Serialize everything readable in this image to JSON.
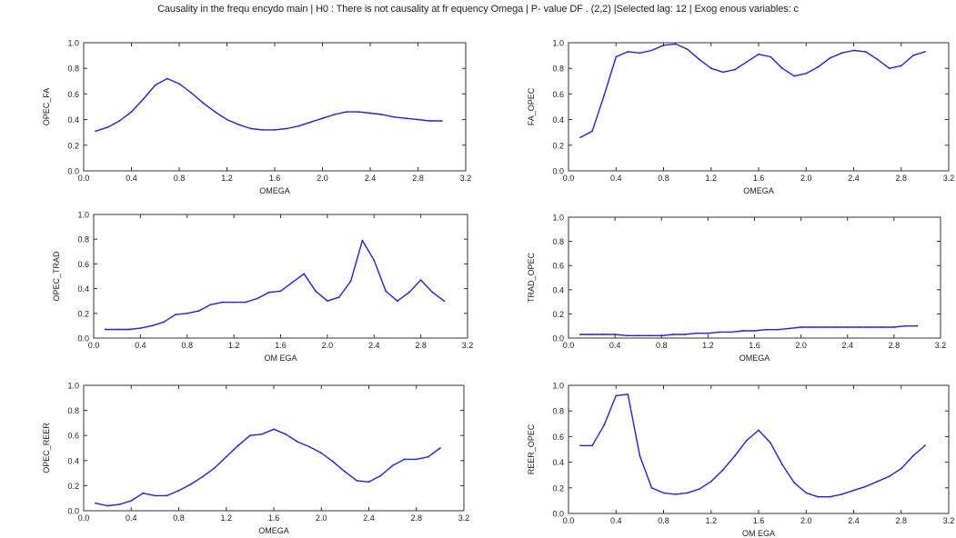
{
  "title": "Causality in the frequ encydo main | H0 : There is not causality at fr equency Omega | P- value DF . (2,2) |Selected lag: 12 | Exog enous variables: c",
  "line_color": "#1f1fff",
  "chart_data": [
    {
      "type": "line",
      "title": "",
      "xlabel": "OMEGA",
      "ylabel": "OPEC_FA",
      "xlim": [
        0.0,
        3.2
      ],
      "ylim": [
        0.0,
        1.0
      ],
      "xticks": [
        "0.0",
        "0.4",
        "0.8",
        "1.2",
        "1.6",
        "2.0",
        "2.4",
        "2.8",
        "3.2"
      ],
      "yticks": [
        "0.0",
        "0.2",
        "0.4",
        "0.6",
        "0.8",
        "1.0"
      ],
      "grid": false,
      "series": [
        {
          "x": [
            0.1,
            0.2,
            0.3,
            0.4,
            0.5,
            0.6,
            0.7,
            0.8,
            0.9,
            1.0,
            1.1,
            1.2,
            1.3,
            1.4,
            1.5,
            1.6,
            1.7,
            1.8,
            1.9,
            2.0,
            2.1,
            2.2,
            2.3,
            2.4,
            2.5,
            2.6,
            2.7,
            2.8,
            2.9,
            3.0
          ],
          "y": [
            0.31,
            0.34,
            0.39,
            0.46,
            0.56,
            0.67,
            0.72,
            0.68,
            0.61,
            0.53,
            0.46,
            0.4,
            0.36,
            0.33,
            0.32,
            0.32,
            0.33,
            0.35,
            0.38,
            0.41,
            0.44,
            0.46,
            0.46,
            0.45,
            0.44,
            0.42,
            0.41,
            0.4,
            0.39,
            0.39
          ]
        }
      ]
    },
    {
      "type": "line",
      "title": "",
      "xlabel": "OMEGA",
      "ylabel": "FA_OPEC",
      "xlim": [
        0.0,
        3.2
      ],
      "ylim": [
        0.0,
        1.0
      ],
      "xticks": [
        "0.0",
        "0.4",
        "0.8",
        "1.2",
        "1.6",
        "2.0",
        "2.4",
        "2.8",
        "3.2"
      ],
      "yticks": [
        "0.0",
        "0.2",
        "0.4",
        "0.6",
        "0.8",
        "1.0"
      ],
      "grid": false,
      "series": [
        {
          "x": [
            0.1,
            0.2,
            0.3,
            0.4,
            0.5,
            0.6,
            0.7,
            0.8,
            0.9,
            1.0,
            1.1,
            1.2,
            1.3,
            1.4,
            1.5,
            1.6,
            1.7,
            1.8,
            1.9,
            2.0,
            2.1,
            2.2,
            2.3,
            2.4,
            2.5,
            2.6,
            2.7,
            2.8,
            2.9,
            3.0
          ],
          "y": [
            0.26,
            0.31,
            0.59,
            0.89,
            0.93,
            0.92,
            0.94,
            0.98,
            0.99,
            0.95,
            0.87,
            0.8,
            0.77,
            0.79,
            0.85,
            0.91,
            0.89,
            0.8,
            0.74,
            0.76,
            0.81,
            0.88,
            0.92,
            0.94,
            0.93,
            0.87,
            0.8,
            0.82,
            0.9,
            0.93
          ]
        }
      ]
    },
    {
      "type": "line",
      "title": "",
      "xlabel": "OM EGA",
      "ylabel": "OPEC_TRAD",
      "xlim": [
        0.0,
        3.2
      ],
      "ylim": [
        0.0,
        1.0
      ],
      "xticks": [
        "0.0",
        "0.4",
        "0.8",
        "1.2",
        "1.6",
        "2.0",
        "2.4",
        "2.8",
        "3.2"
      ],
      "yticks": [
        "0.0",
        "0.2",
        "0.4",
        "0.6",
        "0.8",
        "1.0"
      ],
      "grid": false,
      "series": [
        {
          "x": [
            0.1,
            0.2,
            0.3,
            0.4,
            0.5,
            0.6,
            0.7,
            0.8,
            0.9,
            1.0,
            1.1,
            1.2,
            1.3,
            1.4,
            1.5,
            1.6,
            1.7,
            1.8,
            1.9,
            2.0,
            2.1,
            2.2,
            2.3,
            2.4,
            2.5,
            2.6,
            2.7,
            2.8,
            2.9,
            3.0
          ],
          "y": [
            0.07,
            0.07,
            0.07,
            0.08,
            0.1,
            0.13,
            0.19,
            0.2,
            0.22,
            0.27,
            0.29,
            0.29,
            0.29,
            0.32,
            0.37,
            0.38,
            0.45,
            0.52,
            0.38,
            0.3,
            0.33,
            0.46,
            0.79,
            0.63,
            0.38,
            0.3,
            0.37,
            0.47,
            0.37,
            0.3
          ]
        }
      ]
    },
    {
      "type": "line",
      "title": "",
      "xlabel": "OMEGA",
      "ylabel": "TRAD_OPEC",
      "xlim": [
        0.0,
        3.2
      ],
      "ylim": [
        0.0,
        1.0
      ],
      "xticks": [
        "0.0",
        "0.4",
        "0.8",
        "1.2",
        "1.6",
        "2.0",
        "2.4",
        "2.8",
        "3.2"
      ],
      "yticks": [
        "0.0",
        "0.2",
        "0.4",
        "0.6",
        "0.8",
        "1.0"
      ],
      "grid": false,
      "series": [
        {
          "x": [
            0.1,
            0.2,
            0.3,
            0.4,
            0.5,
            0.6,
            0.7,
            0.8,
            0.9,
            1.0,
            1.1,
            1.2,
            1.3,
            1.4,
            1.5,
            1.6,
            1.7,
            1.8,
            1.9,
            2.0,
            2.1,
            2.2,
            2.3,
            2.4,
            2.5,
            2.6,
            2.7,
            2.8,
            2.9,
            3.0
          ],
          "y": [
            0.03,
            0.03,
            0.03,
            0.03,
            0.02,
            0.02,
            0.02,
            0.02,
            0.03,
            0.03,
            0.04,
            0.04,
            0.05,
            0.05,
            0.06,
            0.06,
            0.07,
            0.07,
            0.08,
            0.09,
            0.09,
            0.09,
            0.09,
            0.09,
            0.09,
            0.09,
            0.09,
            0.09,
            0.1,
            0.1
          ]
        }
      ]
    },
    {
      "type": "line",
      "title": "",
      "xlabel": "OMEGA",
      "ylabel": "OPEC_REER",
      "xlim": [
        0.0,
        3.2
      ],
      "ylim": [
        0.0,
        1.0
      ],
      "xticks": [
        "0.0",
        "0.4",
        "0.8",
        "1.2",
        "1.6",
        "2.0",
        "2.4",
        "2.8",
        "3.2"
      ],
      "yticks": [
        "0.0",
        "0.2",
        "0.4",
        "0.6",
        "0.8",
        "1.0"
      ],
      "grid": false,
      "series": [
        {
          "x": [
            0.1,
            0.2,
            0.3,
            0.4,
            0.5,
            0.6,
            0.7,
            0.8,
            0.9,
            1.0,
            1.1,
            1.2,
            1.3,
            1.4,
            1.5,
            1.6,
            1.7,
            1.8,
            1.9,
            2.0,
            2.1,
            2.2,
            2.3,
            2.4,
            2.5,
            2.6,
            2.7,
            2.8,
            2.9,
            3.0
          ],
          "y": [
            0.06,
            0.04,
            0.05,
            0.08,
            0.14,
            0.12,
            0.12,
            0.16,
            0.21,
            0.27,
            0.34,
            0.43,
            0.52,
            0.6,
            0.61,
            0.65,
            0.61,
            0.55,
            0.51,
            0.46,
            0.39,
            0.31,
            0.24,
            0.23,
            0.28,
            0.36,
            0.41,
            0.41,
            0.43,
            0.5
          ]
        }
      ]
    },
    {
      "type": "line",
      "title": "",
      "xlabel": "OM EGA",
      "ylabel": "REER_OPEC",
      "xlim": [
        0.0,
        3.2
      ],
      "ylim": [
        0.0,
        1.0
      ],
      "xticks": [
        "0.0",
        "0.4",
        "0.8",
        "1.2",
        "1.6",
        "2.0",
        "2.4",
        "2.8",
        "3.2"
      ],
      "yticks": [
        "0.0",
        "0.2",
        "0.4",
        "0.6",
        "0.8",
        "1.0"
      ],
      "grid": false,
      "series": [
        {
          "x": [
            0.1,
            0.2,
            0.3,
            0.4,
            0.5,
            0.6,
            0.7,
            0.8,
            0.9,
            1.0,
            1.1,
            1.2,
            1.3,
            1.4,
            1.5,
            1.6,
            1.7,
            1.8,
            1.9,
            2.0,
            2.1,
            2.2,
            2.3,
            2.4,
            2.5,
            2.6,
            2.7,
            2.8,
            2.9,
            3.0
          ],
          "y": [
            0.53,
            0.53,
            0.69,
            0.92,
            0.93,
            0.45,
            0.2,
            0.16,
            0.15,
            0.16,
            0.19,
            0.25,
            0.34,
            0.45,
            0.57,
            0.65,
            0.55,
            0.38,
            0.24,
            0.16,
            0.13,
            0.13,
            0.15,
            0.18,
            0.21,
            0.25,
            0.29,
            0.35,
            0.45,
            0.53
          ]
        }
      ]
    }
  ]
}
